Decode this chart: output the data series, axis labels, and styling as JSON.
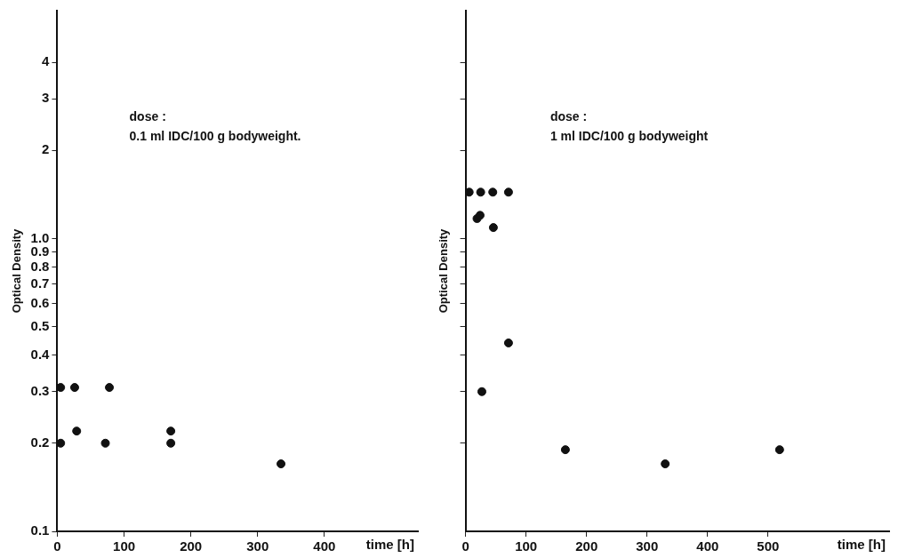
{
  "chart_data": [
    {
      "type": "scatter",
      "ylabel": "Optical Density",
      "xlabel": "time [h]",
      "log": "y",
      "marker": "circle",
      "grid": false,
      "annotations": [
        "dose :",
        "0.1 ml IDC/100 g bodyweight."
      ],
      "xlim": [
        0,
        540
      ],
      "xticks": [
        0,
        100,
        200,
        300,
        400
      ],
      "ylim": [
        0.1,
        6
      ],
      "yticks": [
        0.1,
        0.2,
        0.3,
        0.4,
        0.5,
        0.6,
        0.7,
        0.8,
        0.9,
        {
          "value": 1,
          "label": "1.0"
        },
        2,
        3,
        4
      ],
      "series": [
        {
          "color": "#111111",
          "x": [
            5,
            26,
            78,
            29,
            72,
            5,
            170,
            170,
            335
          ],
          "values": [
            0.31,
            0.31,
            0.31,
            0.22,
            0.2,
            0.2,
            0.22,
            0.2,
            0.17
          ]
        }
      ]
    },
    {
      "type": "scatter",
      "ylabel": "Optical Density",
      "xlabel": "time [h]",
      "log": "y",
      "marker": "circle",
      "grid": false,
      "tick_labels": "x",
      "annotations": [
        "dose :",
        "1 ml IDC/100 g bodyweight"
      ],
      "xlim": [
        0,
        700
      ],
      "xticks": [
        0,
        100,
        200,
        300,
        400,
        500
      ],
      "ylim": [
        0.1,
        6
      ],
      "yticks": [
        {
          "value": 0.2,
          "label": null
        },
        {
          "value": 0.3,
          "label": null
        },
        {
          "value": 0.4,
          "label": null
        },
        {
          "value": 0.5,
          "label": null
        },
        {
          "value": 0.6,
          "label": null
        },
        {
          "value": 0.7,
          "label": null
        },
        {
          "value": 0.8,
          "label": null
        },
        {
          "value": 0.9,
          "label": null
        },
        {
          "value": 1,
          "label": null
        },
        {
          "value": 2,
          "label": null
        },
        {
          "value": 3,
          "label": null
        },
        {
          "value": 4,
          "label": null
        }
      ],
      "series": [
        {
          "color": "#111111",
          "x": [
            6,
            25,
            45,
            71,
            19,
            24,
            46,
            71,
            27,
            165,
            330,
            519
          ],
          "values": [
            1.44,
            1.44,
            1.44,
            1.44,
            1.17,
            1.2,
            1.09,
            0.44,
            0.3,
            0.19,
            0.17,
            0.19
          ]
        }
      ]
    }
  ]
}
